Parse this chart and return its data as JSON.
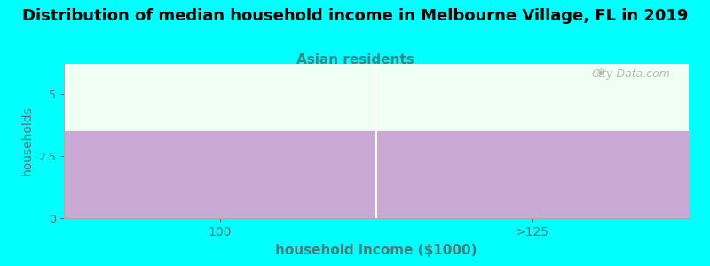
{
  "title": "Distribution of median household income in Melbourne Village, FL in 2019",
  "subtitle": "Asian residents",
  "categories": [
    "100",
    ">125"
  ],
  "values": [
    3.5,
    3.5
  ],
  "bar_color": "#C9A8D4",
  "background_color": "#00FFFF",
  "plot_bg_color": "#F0FFF4",
  "xlabel": "household income ($1000)",
  "ylabel": "households",
  "ylim": [
    0,
    6.2
  ],
  "yticks": [
    0,
    2.5,
    5
  ],
  "title_fontsize": 13,
  "subtitle_fontsize": 11,
  "subtitle_color": "#2E8B8B",
  "axis_label_color": "#4A7A7A",
  "tick_color": "#4A7A7A",
  "watermark": "City-Data.com",
  "bar_edgecolor": "white"
}
